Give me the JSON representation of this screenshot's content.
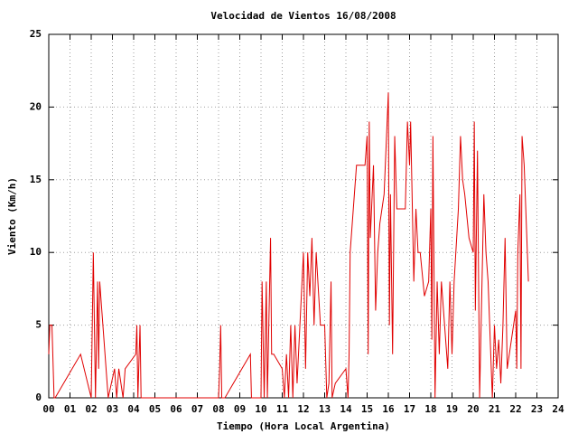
{
  "chart_data": {
    "type": "line",
    "title": "Velocidad de Vientos 16/08/2008",
    "xlabel": "Tiempo (Hora Local Argentina)",
    "ylabel": "Viento (Km/h)",
    "color": "#e00000",
    "grid": true,
    "xlim": [
      0,
      24
    ],
    "ylim": [
      0,
      25
    ],
    "xticks": [
      {
        "value": 0,
        "label": "00"
      },
      {
        "value": 1,
        "label": "01"
      },
      {
        "value": 2,
        "label": "02"
      },
      {
        "value": 3,
        "label": "03"
      },
      {
        "value": 4,
        "label": "04"
      },
      {
        "value": 5,
        "label": "05"
      },
      {
        "value": 6,
        "label": "06"
      },
      {
        "value": 7,
        "label": "07"
      },
      {
        "value": 8,
        "label": "08"
      },
      {
        "value": 9,
        "label": "09"
      },
      10,
      11,
      12,
      13,
      14,
      15,
      16,
      17,
      18,
      19,
      20,
      21,
      22,
      23,
      24
    ],
    "yticks": [
      0,
      5,
      10,
      15,
      20,
      25
    ],
    "x": [
      0,
      0.05,
      0.15,
      0.25,
      0.3,
      1.5,
      2.0,
      2.1,
      2.2,
      2.3,
      2.35,
      2.4,
      2.8,
      3.1,
      3.2,
      3.3,
      3.5,
      3.6,
      4.1,
      4.15,
      4.2,
      4.3,
      4.35,
      8.0,
      8.05,
      8.1,
      8.15,
      8.3,
      9.5,
      9.55,
      10.0,
      10.05,
      10.15,
      10.25,
      10.3,
      10.45,
      10.5,
      10.6,
      11.0,
      11.1,
      11.2,
      11.3,
      11.4,
      11.5,
      11.6,
      11.7,
      12.0,
      12.1,
      12.2,
      12.3,
      12.4,
      12.5,
      12.6,
      12.8,
      13.0,
      13.1,
      13.2,
      13.3,
      13.35,
      13.5,
      14.0,
      14.1,
      14.15,
      14.2,
      14.35,
      14.5,
      14.9,
      15.0,
      15.05,
      15.1,
      15.15,
      15.3,
      15.4,
      15.5,
      15.6,
      15.8,
      16.0,
      16.05,
      16.1,
      16.2,
      16.3,
      16.4,
      16.6,
      16.8,
      16.9,
      17.0,
      17.05,
      17.2,
      17.3,
      17.4,
      17.5,
      17.7,
      17.9,
      18.0,
      18.05,
      18.1,
      18.2,
      18.3,
      18.4,
      18.5,
      18.8,
      18.9,
      19.0,
      19.1,
      19.3,
      19.4,
      19.5,
      19.6,
      19.8,
      20.0,
      20.05,
      20.1,
      20.2,
      20.3,
      20.5,
      20.6,
      20.7,
      20.9,
      21.0,
      21.1,
      21.2,
      21.3,
      21.4,
      21.5,
      21.6,
      22.0,
      22.05,
      22.1,
      22.2,
      22.25,
      22.3,
      22.4,
      22.5,
      22.6
    ],
    "values": [
      3,
      5,
      5,
      0,
      0,
      3,
      0,
      10,
      0,
      8,
      2,
      8,
      0,
      2,
      0,
      2,
      0,
      2,
      3,
      5,
      0,
      5,
      0,
      0,
      2,
      5,
      0,
      0,
      3,
      0,
      0,
      8,
      0,
      8,
      0,
      11,
      3,
      3,
      2,
      0,
      3,
      0,
      5,
      0,
      5,
      1,
      10,
      2,
      10,
      7,
      11,
      5,
      10,
      5,
      5,
      0,
      1,
      8,
      0,
      1,
      2,
      0,
      3,
      10,
      13,
      16,
      16,
      18,
      3,
      19,
      11,
      16,
      6,
      10,
      12,
      14,
      21,
      5,
      14,
      3,
      18,
      13,
      13,
      13,
      19,
      16,
      19,
      8,
      13,
      10,
      10,
      7,
      8,
      13,
      4,
      18,
      0,
      8,
      3,
      8,
      2,
      8,
      3,
      8,
      13,
      18,
      15,
      14,
      11,
      10,
      19,
      6,
      17,
      0,
      14,
      10,
      8,
      0,
      5,
      2,
      4,
      1,
      5,
      11,
      2,
      6,
      2,
      10,
      14,
      2,
      18,
      16,
      12,
      8
    ]
  }
}
